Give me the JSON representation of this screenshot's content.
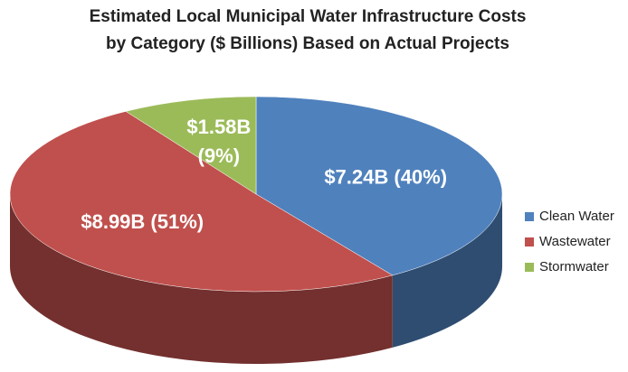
{
  "chart_data": {
    "type": "pie",
    "title": "Estimated Local Municipal Water Infrastructure Costs by Category ($ Billions) Based on Actual Projects",
    "categories": [
      "Clean Water",
      "Wastewater",
      "Stormwater"
    ],
    "values": [
      7.24,
      8.99,
      1.58
    ],
    "value_labels": [
      "$7.24B (40%)",
      "$8.99B (51%)",
      "$1.58B (9%)"
    ],
    "colors": [
      "#4f81bd",
      "#c0504d",
      "#9bbb59"
    ],
    "legend": "right"
  }
}
